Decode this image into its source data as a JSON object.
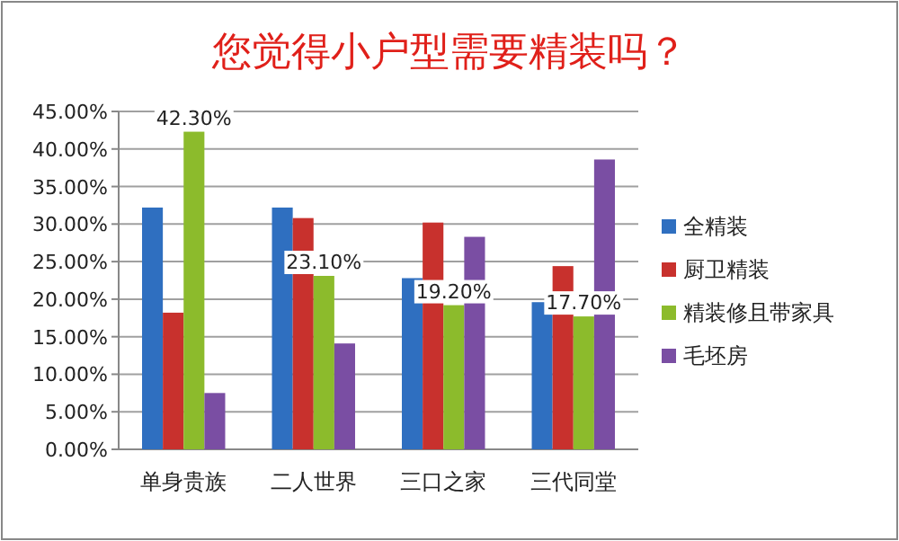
{
  "chart_data": {
    "type": "bar",
    "title": "您觉得小户型需要精装吗？",
    "categories": [
      "单身贵族",
      "二人世界",
      "三口之家",
      "三代同堂"
    ],
    "series": [
      {
        "name": "全精装",
        "color": "#2f6fc0",
        "values": [
          32.2,
          32.2,
          22.8,
          19.6
        ]
      },
      {
        "name": "厨卫精装",
        "color": "#c8312d",
        "values": [
          18.2,
          30.8,
          30.2,
          24.4
        ]
      },
      {
        "name": "精装修且带家具",
        "color": "#8cbb2c",
        "values": [
          42.3,
          23.1,
          19.2,
          17.7
        ],
        "value_labels": [
          "42.30%",
          "23.10%",
          "19.20%",
          "17.70%"
        ]
      },
      {
        "name": "毛坯房",
        "color": "#7a4ea3",
        "values": [
          7.5,
          14.1,
          28.3,
          38.6
        ]
      }
    ],
    "ylim": [
      0,
      45
    ],
    "yticks": [
      {
        "value": 0,
        "label": "0.00%"
      },
      {
        "value": 5,
        "label": "5.00%"
      },
      {
        "value": 10,
        "label": "10.00%"
      },
      {
        "value": 15,
        "label": "15.00%"
      },
      {
        "value": 20,
        "label": "20.00%"
      },
      {
        "value": 25,
        "label": "25.00%"
      },
      {
        "value": 30,
        "label": "30.00%"
      },
      {
        "value": 35,
        "label": "35.00%"
      },
      {
        "value": 40,
        "label": "40.00%"
      },
      {
        "value": 45,
        "label": "45.00%"
      }
    ],
    "grid": "y",
    "legend": "right"
  }
}
